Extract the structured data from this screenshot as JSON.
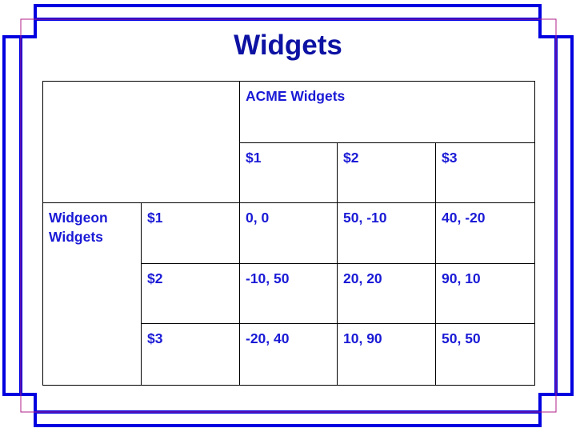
{
  "title": "Widgets",
  "colors": {
    "frame": "#0000e0",
    "frame_inner": "#b0208a",
    "title": "#0d12a3",
    "text": "#1a1ad6",
    "grid": "#000000"
  },
  "table": {
    "column_player": "ACME Widgets",
    "row_player": "Widgeon Widgets",
    "column_strategies": [
      "$1",
      "$2",
      "$3"
    ],
    "row_strategies": [
      "$1",
      "$2",
      "$3"
    ],
    "payoffs": [
      [
        "0, 0",
        "50, -10",
        "40, -20"
      ],
      [
        "-10, 50",
        "20, 20",
        "90, 10"
      ],
      [
        "-20, 40",
        "10, 90",
        "50, 50"
      ]
    ]
  }
}
